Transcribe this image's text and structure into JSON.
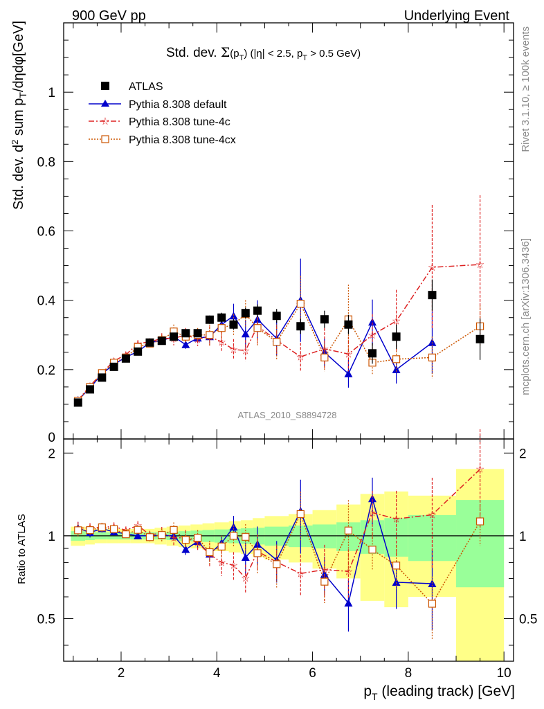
{
  "header": {
    "left": "900 GeV pp",
    "right": "Underlying Event"
  },
  "side_labels": {
    "rivet": "Rivet 3.1.10, ≥ 100k events",
    "mcplots": "mcplots.cern.ch [arXiv:1306.3436]"
  },
  "chart_data": {
    "type": "scatter",
    "title": "Std. dev. Σ(p_T) (|η| < 2.5, p_T > 0.5 GeV)",
    "watermark": "ATLAS_2010_S8894728",
    "xlabel": "p_T (leading track) [GeV]",
    "ylabel": "Std. dev. d² sum p_T/dηdφ[GeV]",
    "xlim": [
      0.8,
      10.2
    ],
    "ylim": [
      0,
      1.2
    ],
    "x_ticks": [
      "2",
      "4",
      "6",
      "8",
      "10"
    ],
    "y_ticks": [
      "0",
      "0.2",
      "0.4",
      "0.6",
      "0.8",
      "1"
    ],
    "legend_position": "top-left",
    "x": [
      1.1,
      1.35,
      1.6,
      1.85,
      2.1,
      2.35,
      2.6,
      2.85,
      3.1,
      3.35,
      3.6,
      3.85,
      4.1,
      4.35,
      4.6,
      4.85,
      5.25,
      5.75,
      6.25,
      6.75,
      7.25,
      7.75,
      8.5,
      9.5
    ],
    "series": [
      {
        "name": "ATLAS",
        "color": "#000000",
        "values": [
          0.105,
          0.143,
          0.177,
          0.208,
          0.232,
          0.252,
          0.278,
          0.283,
          0.295,
          0.305,
          0.305,
          0.344,
          0.35,
          0.33,
          0.363,
          0.37,
          0.355,
          0.325,
          0.345,
          0.33,
          0.247,
          0.295,
          0.415,
          0.288
        ],
        "errors": [
          0.006,
          0.006,
          0.006,
          0.006,
          0.006,
          0.007,
          0.007,
          0.007,
          0.008,
          0.008,
          0.01,
          0.012,
          0.014,
          0.015,
          0.016,
          0.018,
          0.02,
          0.022,
          0.025,
          0.028,
          0.03,
          0.035,
          0.045,
          0.06
        ]
      },
      {
        "name": "Pythia 8.308 default",
        "color": "#0000cc",
        "values": [
          0.112,
          0.147,
          0.188,
          0.215,
          0.236,
          0.252,
          0.278,
          0.284,
          0.295,
          0.272,
          0.291,
          0.295,
          0.33,
          0.355,
          0.303,
          0.345,
          0.29,
          0.4,
          0.25,
          0.188,
          0.337,
          0.2,
          0.278,
          null
        ],
        "errors": [
          0.006,
          0.006,
          0.006,
          0.006,
          0.006,
          0.007,
          0.008,
          0.009,
          0.01,
          0.012,
          0.015,
          0.018,
          0.02,
          0.035,
          0.04,
          0.055,
          0.05,
          0.12,
          0.04,
          0.04,
          0.065,
          0.04,
          0.09,
          null
        ]
      },
      {
        "name": "Pythia 8.308 tune-4c",
        "color": "#dd2222",
        "values": [
          0.112,
          0.153,
          0.19,
          0.225,
          0.243,
          0.275,
          0.28,
          0.29,
          0.29,
          0.3,
          0.288,
          0.295,
          0.28,
          0.258,
          0.255,
          0.325,
          0.285,
          0.237,
          0.26,
          0.245,
          0.3,
          0.34,
          0.495,
          0.503
        ],
        "errors": [
          0.006,
          0.006,
          0.007,
          0.008,
          0.008,
          0.01,
          0.01,
          0.015,
          0.02,
          0.02,
          0.02,
          0.03,
          0.03,
          0.03,
          0.03,
          0.05,
          0.04,
          0.04,
          0.06,
          0.05,
          0.06,
          0.09,
          0.18,
          0.2
        ]
      },
      {
        "name": "Pythia 8.308 tune-4cx",
        "color": "#cc5500",
        "values": [
          0.11,
          0.15,
          0.19,
          0.22,
          0.235,
          0.265,
          0.275,
          0.285,
          0.31,
          0.295,
          0.3,
          0.3,
          0.32,
          0.33,
          0.36,
          0.32,
          0.28,
          0.39,
          0.235,
          0.345,
          0.22,
          0.23,
          0.235,
          0.325
        ],
        "errors": [
          0.006,
          0.006,
          0.007,
          0.008,
          0.008,
          0.01,
          0.01,
          0.015,
          0.02,
          0.02,
          0.02,
          0.03,
          0.03,
          0.03,
          0.04,
          0.05,
          0.05,
          0.08,
          0.04,
          0.1,
          0.035,
          0.04,
          0.06,
          0.06
        ]
      }
    ],
    "ratio_panel": {
      "ylabel": "Ratio to ATLAS",
      "ylim": [
        0.35,
        2.25
      ],
      "y_ticks": [
        "0.5",
        "1",
        "2"
      ],
      "band_edges": [
        0.95,
        1.25,
        1.45,
        1.7,
        1.95,
        2.2,
        2.45,
        2.7,
        2.95,
        3.2,
        3.45,
        3.7,
        3.95,
        4.25,
        4.5,
        4.75,
        5.0,
        5.5,
        6.0,
        6.5,
        7.0,
        7.5,
        8.0,
        9.0,
        10.0
      ],
      "band_inner": [
        0.04,
        0.035,
        0.03,
        0.03,
        0.03,
        0.03,
        0.03,
        0.03,
        0.035,
        0.04,
        0.045,
        0.05,
        0.055,
        0.06,
        0.065,
        0.07,
        0.08,
        0.09,
        0.1,
        0.12,
        0.14,
        0.16,
        0.19,
        0.35
      ],
      "band_outer": [
        0.08,
        0.07,
        0.06,
        0.06,
        0.06,
        0.06,
        0.06,
        0.07,
        0.08,
        0.09,
        0.1,
        0.11,
        0.12,
        0.13,
        0.14,
        0.16,
        0.18,
        0.2,
        0.24,
        0.3,
        0.42,
        0.45,
        0.4,
        0.75
      ]
    }
  }
}
